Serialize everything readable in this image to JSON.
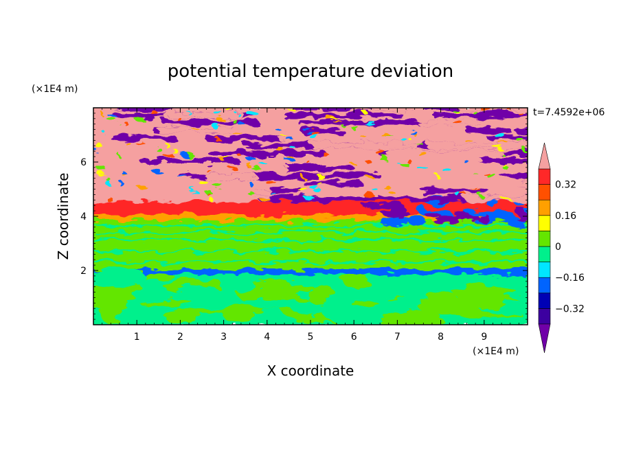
{
  "chart_data": {
    "type": "heatmap",
    "title": "potential temperature deviation",
    "xlabel": "X coordinate",
    "ylabel": "Z coordinate",
    "x_unit": "(×1E4 m)",
    "y_unit": "(×1E4 m)",
    "time_label": "t=7.4592e+06",
    "xlim": [
      0,
      10
    ],
    "ylim": [
      0,
      8
    ],
    "x_ticks": [
      "1",
      "2",
      "3",
      "4",
      "5",
      "6",
      "7",
      "8",
      "9"
    ],
    "y_ticks": [
      "2",
      "4",
      "6"
    ],
    "colorbar": {
      "levels": [
        -0.4,
        -0.32,
        -0.24,
        -0.16,
        -0.08,
        0,
        0.08,
        0.16,
        0.24,
        0.32,
        0.4
      ],
      "tick_labels": [
        "0.32",
        "0.16",
        "0",
        "-0.16",
        "-0.32"
      ],
      "tick_values": [
        0.32,
        0.16,
        0,
        -0.16,
        -0.32
      ],
      "colors_low_to_high": [
        "#7000a8",
        "#3c00a0",
        "#0000b4",
        "#0064ff",
        "#00e6ff",
        "#00f08c",
        "#64e600",
        "#ffff00",
        "#ffa000",
        "#ff5000",
        "#ff2828",
        "#f5a0a0"
      ],
      "extend": "both"
    },
    "layers": [
      {
        "z_range": [
          0,
          1.9
        ],
        "description_value": -0.04,
        "dominant": "mixed green/teal eddies"
      },
      {
        "z_range": [
          1.9,
          2.1
        ],
        "description_value": -0.2
      },
      {
        "z_range": [
          2.1,
          3.9
        ],
        "description_value": 0.04
      },
      {
        "z_range": [
          3.9,
          4.1
        ],
        "description_value": 0.2
      },
      {
        "z_range": [
          4.1,
          4.6
        ],
        "description_value": 0.34
      },
      {
        "z_range": [
          4.6,
          8.0
        ],
        "description_value": "alternating ±0.4"
      }
    ]
  }
}
